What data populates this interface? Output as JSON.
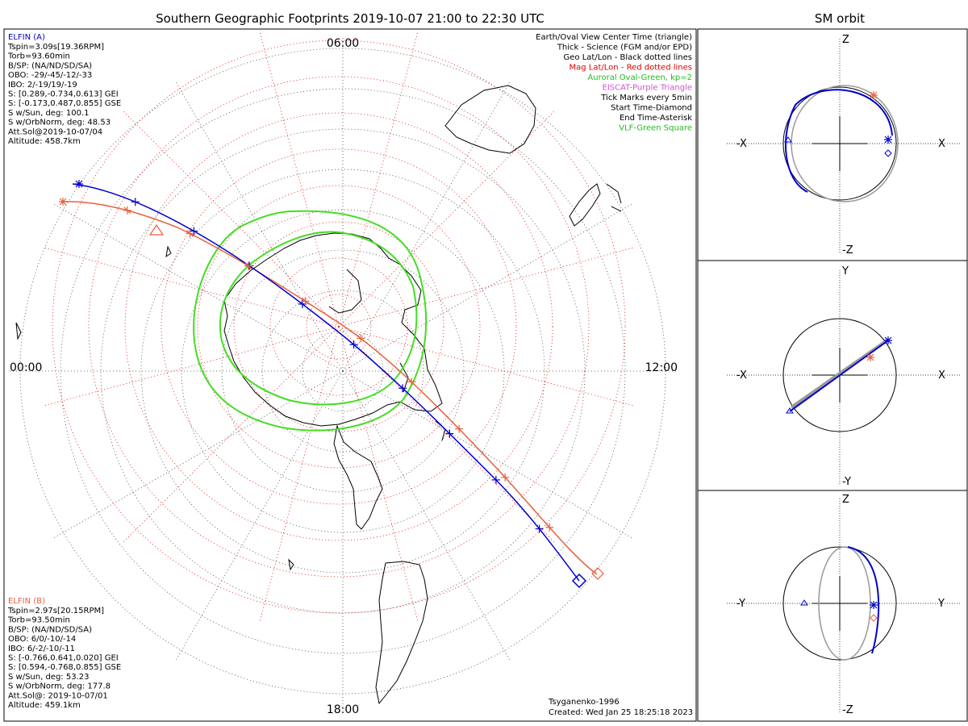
{
  "title": "Southern Geographic Footprints 2019-10-07 21:00 to 22:30 UTC",
  "side_title": "SM orbit",
  "mlt_labels": {
    "top": "06:00",
    "left": "00:00",
    "right": "12:00",
    "bottom": "18:00"
  },
  "elfin_a": {
    "name": "ELFIN (A)",
    "lines": [
      "Tspin=3.09s[19.36RPM]",
      "Torb=93.60min",
      "B/SP: (NA/ND/SD/SA)",
      "OBO: -29/-45/-12/-33",
      "IBO: 2/-19/19/-19",
      "S: [0.289,-0.734,0.613] GEI",
      "S: [-0.173,0.487,0.855] GSE",
      "S w/Sun, deg: 100.1",
      "S w/OrbNorm, deg: 48.53",
      "Att.Sol@2019-10-07/04",
      "Altitude: 458.7km"
    ]
  },
  "elfin_b": {
    "name": "ELFIN (B)",
    "lines": [
      "Tspin=2.97s[20.15RPM]",
      "Torb=93.50min",
      "B/SP: (NA/ND/SD/SA)",
      "OBO: 6/0/-10/-14",
      "IBO: 6/-2/-10/-11",
      "S: [-0.766,0.641,0.020] GEI",
      "S: [0.594,-0.768,0.855] GSE",
      "S w/Sun, deg: 53.23",
      "S w/OrbNorm, deg: 177.8",
      "Att.Sol@: 2019-10-07/01",
      "Altitude: 459.1km"
    ]
  },
  "legend": [
    {
      "text": "Earth/Oval View Center Time (triangle)",
      "color": "#000000"
    },
    {
      "text": "Thick - Science (FGM and/or EPD)",
      "color": "#000000"
    },
    {
      "text": "Geo Lat/Lon - Black dotted lines",
      "color": "#000000"
    },
    {
      "text": "Mag Lat/Lon - Red dotted lines",
      "color": "#e00000"
    },
    {
      "text": "Auroral Oval-Green, kp=2",
      "color": "#22bb22"
    },
    {
      "text": "EISCAT-Purple Triangle",
      "color": "#cc55cc"
    },
    {
      "text": "Tick Marks every 5min",
      "color": "#000000"
    },
    {
      "text": "Start Time-Diamond",
      "color": "#000000"
    },
    {
      "text": "End Time-Asterisk",
      "color": "#000000"
    },
    {
      "text": "VLF-Green Square",
      "color": "#22bb22"
    }
  ],
  "footer": {
    "model": "Tsyganenko-1996",
    "created": "Created: Wed Jan 25 18:25:18 2023"
  },
  "orbit_panels": [
    {
      "left": "-X",
      "right": "X",
      "top": "Z",
      "bottom": "-Z"
    },
    {
      "left": "-X",
      "right": "X",
      "top": "Y",
      "bottom": "-Y"
    },
    {
      "left": "-Y",
      "right": "Y",
      "top": "Z",
      "bottom": "-Z"
    }
  ],
  "colors": {
    "elfin_a": "#0000cc",
    "elfin_b": "#e8603c",
    "oval": "#44dd22",
    "mag_grid": "#e00000"
  }
}
